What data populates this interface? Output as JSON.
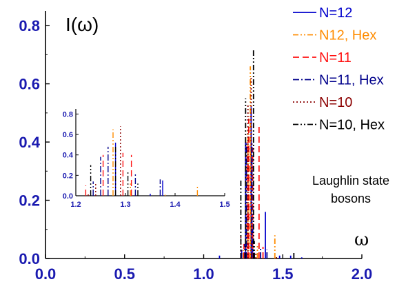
{
  "chart_data": {
    "type": "bar",
    "ylabel": "I(ω)",
    "xlabel": "ω",
    "xlim": [
      0,
      2
    ],
    "ylim": [
      0,
      0.85
    ],
    "x_ticks": [
      "0.0",
      "0.5",
      "1.0",
      "1.5",
      "2.0"
    ],
    "y_ticks": [
      "0.0",
      "0.2",
      "0.4",
      "0.6",
      "0.8"
    ],
    "x_tick_values": [
      0,
      0.5,
      1.0,
      1.5,
      2.0
    ],
    "y_tick_values": [
      0,
      0.2,
      0.4,
      0.6,
      0.8
    ],
    "annotations": [
      "Laughlin state",
      "bosons"
    ],
    "legend_position": "top-right",
    "series": [
      {
        "name": "N=12",
        "color": "#0000cc",
        "dash": "solid",
        "x": [
          1.1,
          1.24,
          1.265,
          1.3,
          1.31,
          1.39,
          1.48,
          1.55,
          1.62
        ],
        "y": [
          0.01,
          0.03,
          0.4,
          0.52,
          0.1,
          0.16,
          0.01,
          0.01,
          0.004
        ]
      },
      {
        "name": "N12, Hex",
        "color": "#ff8c00",
        "dash": "dashdotdot",
        "x": [
          1.25,
          1.28,
          1.295,
          1.34,
          1.45
        ],
        "y": [
          0.03,
          0.44,
          0.66,
          0.05,
          0.08
        ]
      },
      {
        "name": "N=11",
        "color": "#ff1111",
        "dash": "dashed",
        "x": [
          1.255,
          1.275,
          1.285,
          1.31,
          1.35,
          1.375
        ],
        "y": [
          0.05,
          0.4,
          0.48,
          0.38,
          0.46,
          0.04
        ]
      },
      {
        "name": "N=11, Hex",
        "color": "#00008b",
        "dash": "dashdot",
        "x": [
          1.26,
          1.27,
          1.305,
          1.32,
          1.36,
          1.4
        ],
        "y": [
          0.05,
          0.4,
          0.4,
          0.02,
          0.04,
          0.03
        ]
      },
      {
        "name": "N=10",
        "color": "#8b0000",
        "dash": "dotted",
        "x": [
          1.235,
          1.28,
          1.3,
          1.33,
          1.46
        ],
        "y": [
          0.08,
          0.53,
          0.62,
          0.02,
          0.01
        ]
      },
      {
        "name": "N=10, Hex",
        "color": "#000000",
        "dash": "dashdotdot",
        "x": [
          1.235,
          1.265,
          1.315,
          1.32,
          1.57
        ],
        "y": [
          0.27,
          0.55,
          0.72,
          0.06,
          0.02
        ]
      }
    ],
    "inset": {
      "xlim": [
        1.2,
        1.5
      ],
      "ylim": [
        0,
        0.85
      ],
      "x_ticks": [
        "1.2",
        "1.3",
        "1.4",
        "1.5"
      ],
      "y_ticks": [
        "0.0",
        "0.2",
        "0.4",
        "0.6",
        "0.8"
      ],
      "x_tick_values": [
        1.2,
        1.3,
        1.4,
        1.5
      ],
      "y_tick_values": [
        0,
        0.2,
        0.4,
        0.6,
        0.8
      ],
      "series": [
        {
          "name": "N=12",
          "x": [
            1.28,
            1.35,
            1.375
          ],
          "y": [
            0.52,
            0.02,
            0.15
          ]
        },
        {
          "name": "N12, Hex",
          "x": [
            1.275,
            1.31,
            1.38,
            1.445
          ],
          "y": [
            0.65,
            0.12,
            0.01,
            0.1
          ]
        },
        {
          "name": "N=11",
          "x": [
            1.22,
            1.255,
            1.295,
            1.312,
            1.32
          ],
          "y": [
            0.1,
            0.4,
            0.42,
            0.4,
            0.01
          ]
        },
        {
          "name": "N=11, Hex",
          "x": [
            1.235,
            1.25,
            1.265,
            1.32,
            1.37
          ],
          "y": [
            0.14,
            0.38,
            0.48,
            0.22,
            0.16
          ]
        },
        {
          "name": "N=10",
          "x": [
            1.225,
            1.24,
            1.29
          ],
          "y": [
            0.02,
            0.13,
            0.68
          ]
        },
        {
          "name": "N=10, Hex",
          "x": [
            1.23,
            1.28,
            1.305,
            1.325
          ],
          "y": [
            0.3,
            0.48,
            0.24,
            0.12
          ]
        }
      ]
    }
  }
}
